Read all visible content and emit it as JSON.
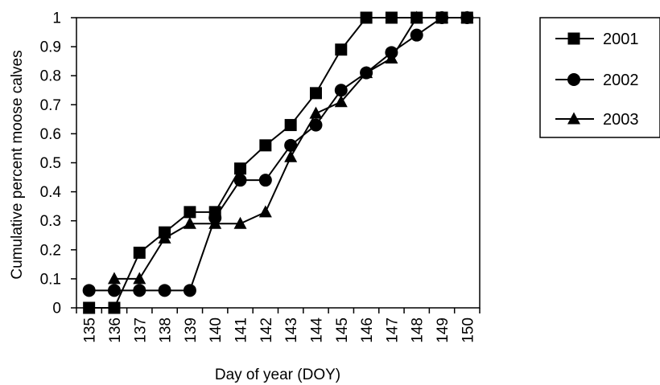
{
  "chart_data": {
    "type": "line",
    "title": "",
    "xlabel": "Day of year (DOY)",
    "ylabel": "Cumulative percent moose calves",
    "x": [
      135,
      136,
      137,
      138,
      139,
      140,
      141,
      142,
      143,
      144,
      145,
      146,
      147,
      148,
      149,
      150
    ],
    "x_tick_labels": [
      "135",
      "136",
      "137",
      "138",
      "139",
      "140",
      "141",
      "142",
      "143",
      "144",
      "145",
      "146",
      "147",
      "148",
      "149",
      "150"
    ],
    "y_ticks": [
      0,
      0.1,
      0.2,
      0.3,
      0.4,
      0.5,
      0.6,
      0.7,
      0.8,
      0.9,
      1
    ],
    "y_tick_labels": [
      "0",
      "0.1",
      "0.2",
      "0.3",
      "0.4",
      "0.5",
      "0.6",
      "0.7",
      "0.8",
      "0.9",
      "1"
    ],
    "xlim": [
      135,
      150
    ],
    "ylim": [
      0,
      1
    ],
    "grid": false,
    "legend_position": "right",
    "series": [
      {
        "name": "2001",
        "marker": "square",
        "color": "#000000",
        "points": [
          [
            135,
            0
          ],
          [
            136,
            0
          ],
          [
            137,
            0.19
          ],
          [
            138,
            0.26
          ],
          [
            139,
            0.33
          ],
          [
            140,
            0.33
          ],
          [
            141,
            0.48
          ],
          [
            142,
            0.56
          ],
          [
            143,
            0.63
          ],
          [
            144,
            0.74
          ],
          [
            145,
            0.89
          ],
          [
            146,
            1
          ],
          [
            147,
            1
          ],
          [
            148,
            1
          ],
          [
            149,
            1
          ],
          [
            150,
            1
          ]
        ]
      },
      {
        "name": "2002",
        "marker": "circle",
        "color": "#000000",
        "points": [
          [
            135,
            0.06
          ],
          [
            136,
            0.06
          ],
          [
            137,
            0.06
          ],
          [
            138,
            0.06
          ],
          [
            139,
            0.06
          ],
          [
            140,
            0.31
          ],
          [
            141,
            0.44
          ],
          [
            142,
            0.44
          ],
          [
            143,
            0.56
          ],
          [
            144,
            0.63
          ],
          [
            145,
            0.75
          ],
          [
            146,
            0.81
          ],
          [
            147,
            0.88
          ],
          [
            148,
            0.94
          ],
          [
            149,
            1
          ],
          [
            150,
            1
          ]
        ]
      },
      {
        "name": "2003",
        "marker": "triangle",
        "color": "#000000",
        "points": [
          [
            136,
            0.1
          ],
          [
            137,
            0.1
          ],
          [
            138,
            0.24
          ],
          [
            139,
            0.29
          ],
          [
            140,
            0.29
          ],
          [
            141,
            0.29
          ],
          [
            142,
            0.33
          ],
          [
            143,
            0.52
          ],
          [
            144,
            0.67
          ],
          [
            145,
            0.71
          ],
          [
            146,
            0.81
          ],
          [
            147,
            0.86
          ],
          [
            148,
            1
          ],
          [
            149,
            1
          ],
          [
            150,
            1
          ]
        ]
      }
    ]
  }
}
